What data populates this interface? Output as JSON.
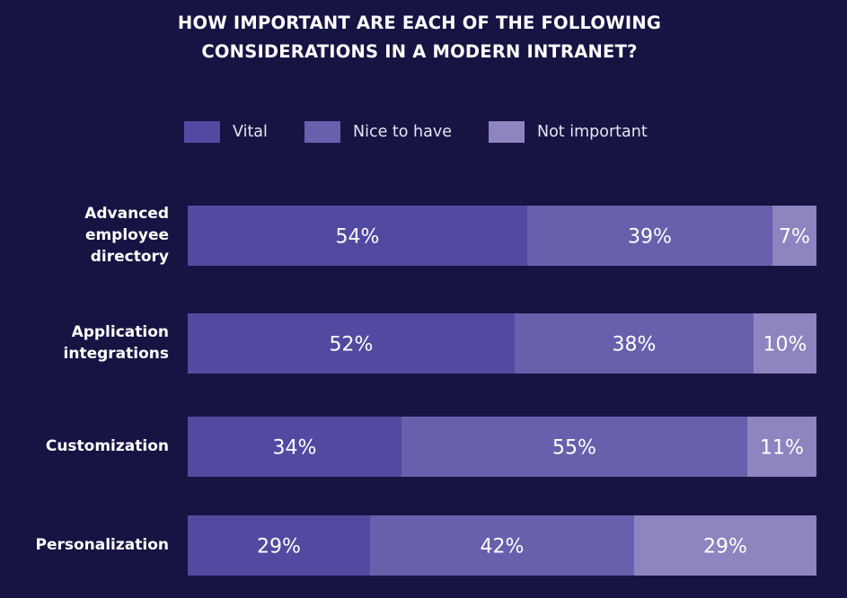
{
  "colors": {
    "background": "#171443",
    "vital": "#524aa0",
    "nice_to_have": "#6860ac",
    "not_important": "#8d84c0"
  },
  "chart_data": {
    "type": "bar",
    "orientation": "horizontal",
    "stacked": true,
    "title_lines": [
      "HOW IMPORTANT ARE EACH OF THE FOLLOWING",
      "CONSIDERATIONS IN A MODERN INTRANET?"
    ],
    "categories": [
      "Advanced employee directory",
      "Application integrations",
      "Customization",
      "Personalization"
    ],
    "category_label_lines": [
      [
        "Advanced",
        "employee",
        "directory"
      ],
      [
        "Application",
        "integrations"
      ],
      [
        "Customization"
      ],
      [
        "Personalization"
      ]
    ],
    "series": [
      {
        "name": "Vital",
        "values": [
          54,
          52,
          34,
          29
        ],
        "labels": [
          "54%",
          "52%",
          "34%",
          "29%"
        ]
      },
      {
        "name": "Nice to have",
        "values": [
          39,
          38,
          55,
          42
        ],
        "labels": [
          "39%",
          "38%",
          "55%",
          "42%"
        ]
      },
      {
        "name": "Not important",
        "values": [
          7,
          10,
          11,
          29
        ],
        "labels": [
          "7%",
          "10%",
          "11%",
          "29%"
        ]
      }
    ],
    "legend_placement": "top-center",
    "grid": false
  }
}
